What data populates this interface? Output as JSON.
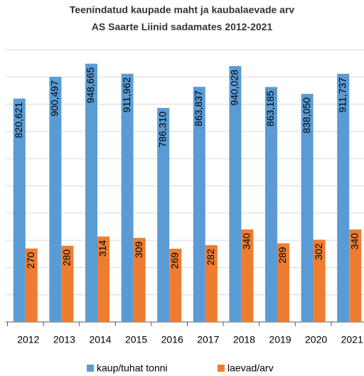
{
  "chart_data": {
    "type": "bar",
    "title": "Teenindatud kaupade maht ja kaubalaevade arv",
    "subtitle": "AS Saarte Liinid sadamates 2012-2021",
    "categories": [
      "2012",
      "2013",
      "2014",
      "2015",
      "2016",
      "2017",
      "2018",
      "2019",
      "2020",
      "2021"
    ],
    "series": [
      {
        "name": "kaup/tuhat tonni",
        "color": "#5b9bd5",
        "values": [
          820.621,
          900.497,
          948.665,
          911.962,
          786.31,
          863.837,
          940.028,
          863.185,
          838.05,
          911.737
        ],
        "value_labels": [
          "820,621",
          "900,497",
          "948,665",
          "911,962",
          "786,310",
          "863,837",
          "940,028",
          "863,185",
          "838,050",
          "911,737"
        ]
      },
      {
        "name": "laevad/arv",
        "color": "#ed7d31",
        "values": [
          270,
          280,
          314,
          309,
          269,
          282,
          340,
          289,
          302,
          340
        ]
      }
    ],
    "ylim": [
      0,
      1000
    ],
    "yticks": [
      0,
      100,
      200,
      300,
      400,
      500,
      600,
      700,
      800,
      900,
      1000
    ],
    "grid": true,
    "legend": "bottom"
  }
}
